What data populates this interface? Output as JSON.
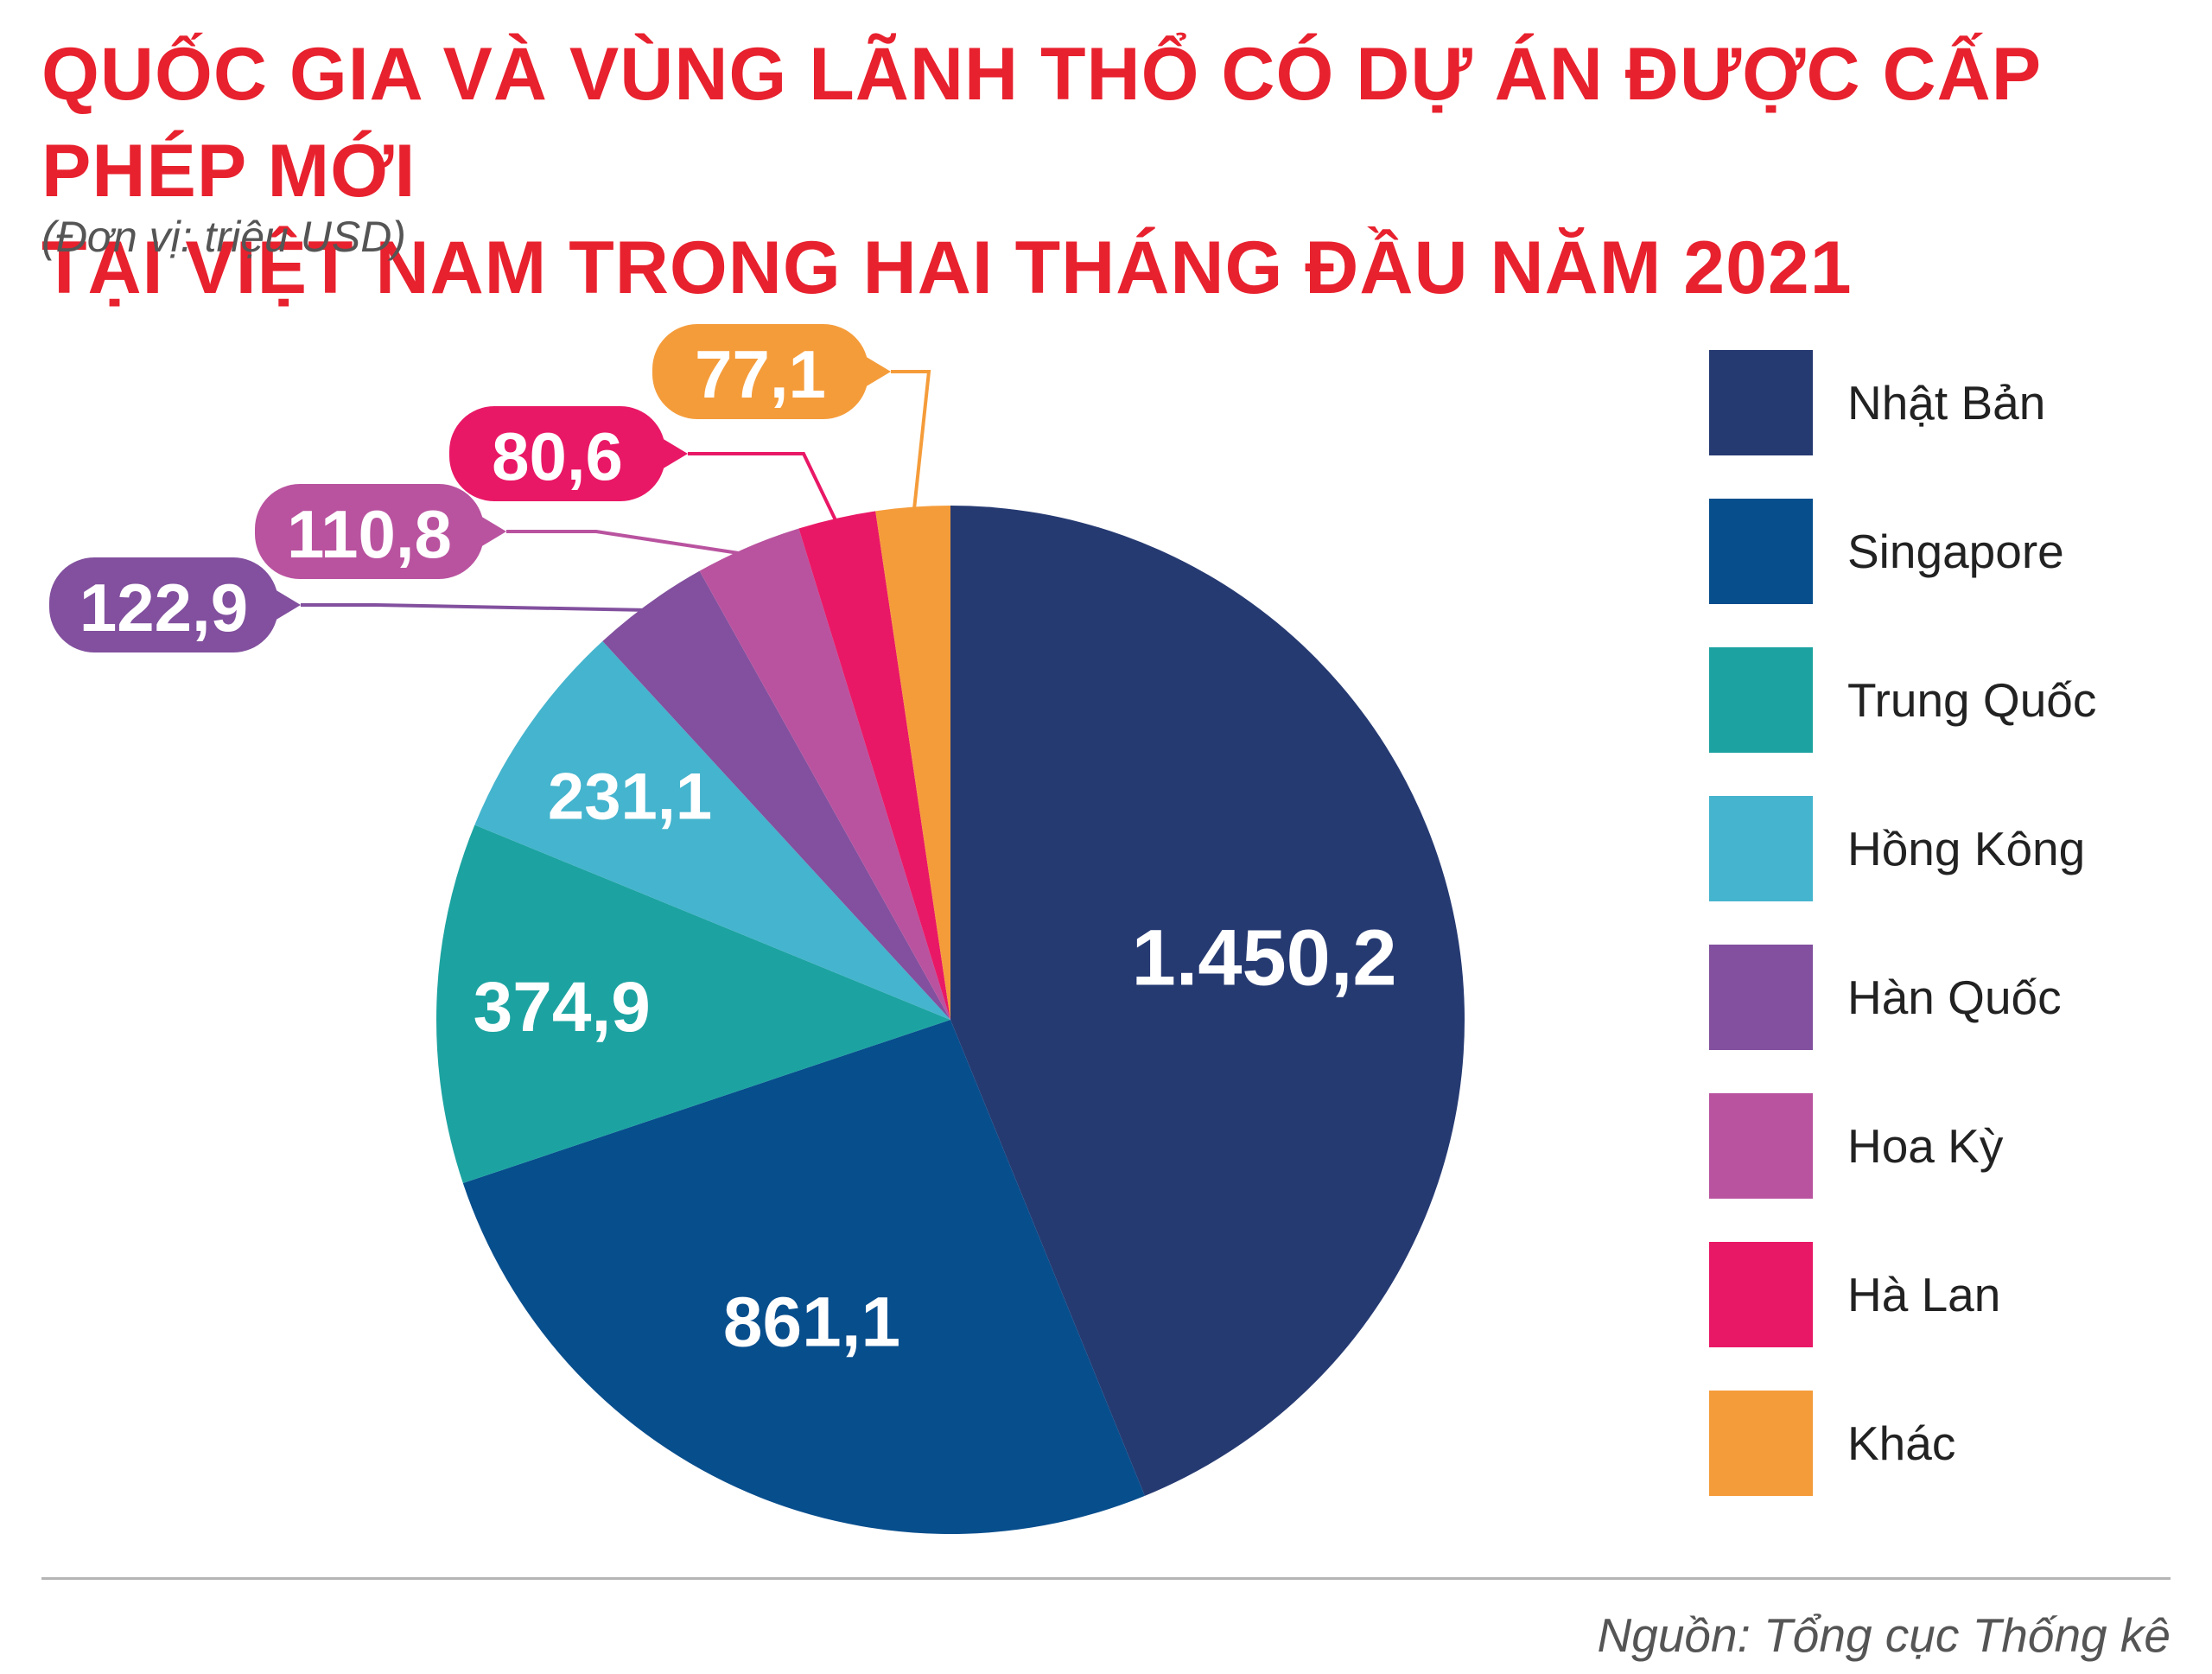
{
  "title": {
    "line1": "QUỐC GIA VÀ VÙNG LÃNH THỔ CÓ DỰ ÁN ĐƯỢC CẤP PHÉP MỚI",
    "line2": "TẠI VIỆT NAM TRONG HAI THÁNG ĐẦU NĂM 2021"
  },
  "unit": "(Đơn vị: triệu USD)",
  "source": "Nguồn: Tổng cục Thống kê",
  "chart_data": {
    "type": "pie",
    "title": "QUỐC GIA VÀ VÙNG LÃNH THỔ CÓ DỰ ÁN ĐƯỢC CẤP PHÉP MỚI TẠI VIỆT NAM TRONG HAI THÁNG ĐẦU NĂM 2021",
    "unit": "triệu USD",
    "start": "top, clockwise",
    "legend_position": "right",
    "slices": [
      {
        "name": "Nhật Bản",
        "value": 1450.2,
        "label": "1.450,2",
        "color": "#263a72"
      },
      {
        "name": "Singapore",
        "value": 861.1,
        "label": "861,1",
        "color": "#074e8d"
      },
      {
        "name": "Trung Quốc",
        "value": 374.9,
        "label": "374,9",
        "color": "#1ca3a1"
      },
      {
        "name": "Hồng Kông",
        "value": 231.1,
        "label": "231,1",
        "color": "#45b4ce"
      },
      {
        "name": "Hàn Quốc",
        "value": 122.9,
        "label": "122,9",
        "color": "#82509e"
      },
      {
        "name": "Hoa Kỳ",
        "value": 110.8,
        "label": "110,8",
        "color": "#b9539f"
      },
      {
        "name": "Hà Lan",
        "value": 80.6,
        "label": "80,6",
        "color": "#e91866"
      },
      {
        "name": "Khác",
        "value": 77.1,
        "label": "77,1",
        "color": "#f59c3a"
      }
    ]
  }
}
